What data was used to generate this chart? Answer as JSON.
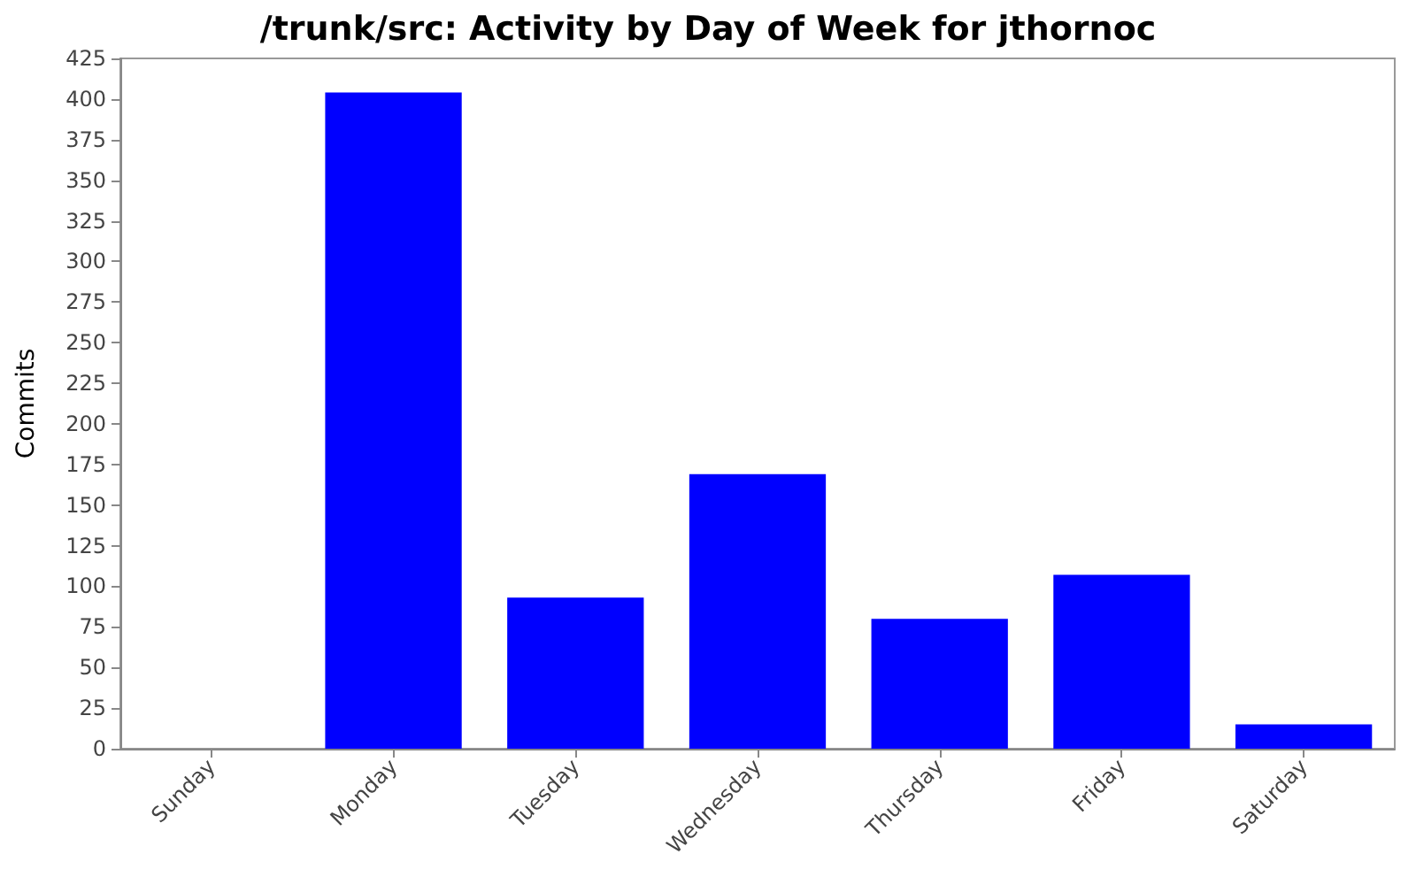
{
  "chart_data": {
    "type": "bar",
    "title": "/trunk/src: Activity by Day of Week for jthornoc",
    "ylabel": "Commits",
    "categories": [
      "Sunday",
      "Monday",
      "Tuesday",
      "Wednesday",
      "Thursday",
      "Friday",
      "Saturday"
    ],
    "values": [
      0,
      404,
      93,
      169,
      80,
      107,
      15
    ],
    "color": "#0000ff",
    "ylim": [
      0,
      425
    ],
    "yticks": [
      0,
      25,
      50,
      75,
      100,
      125,
      150,
      175,
      200,
      225,
      250,
      275,
      300,
      325,
      350,
      375,
      400,
      425
    ]
  }
}
